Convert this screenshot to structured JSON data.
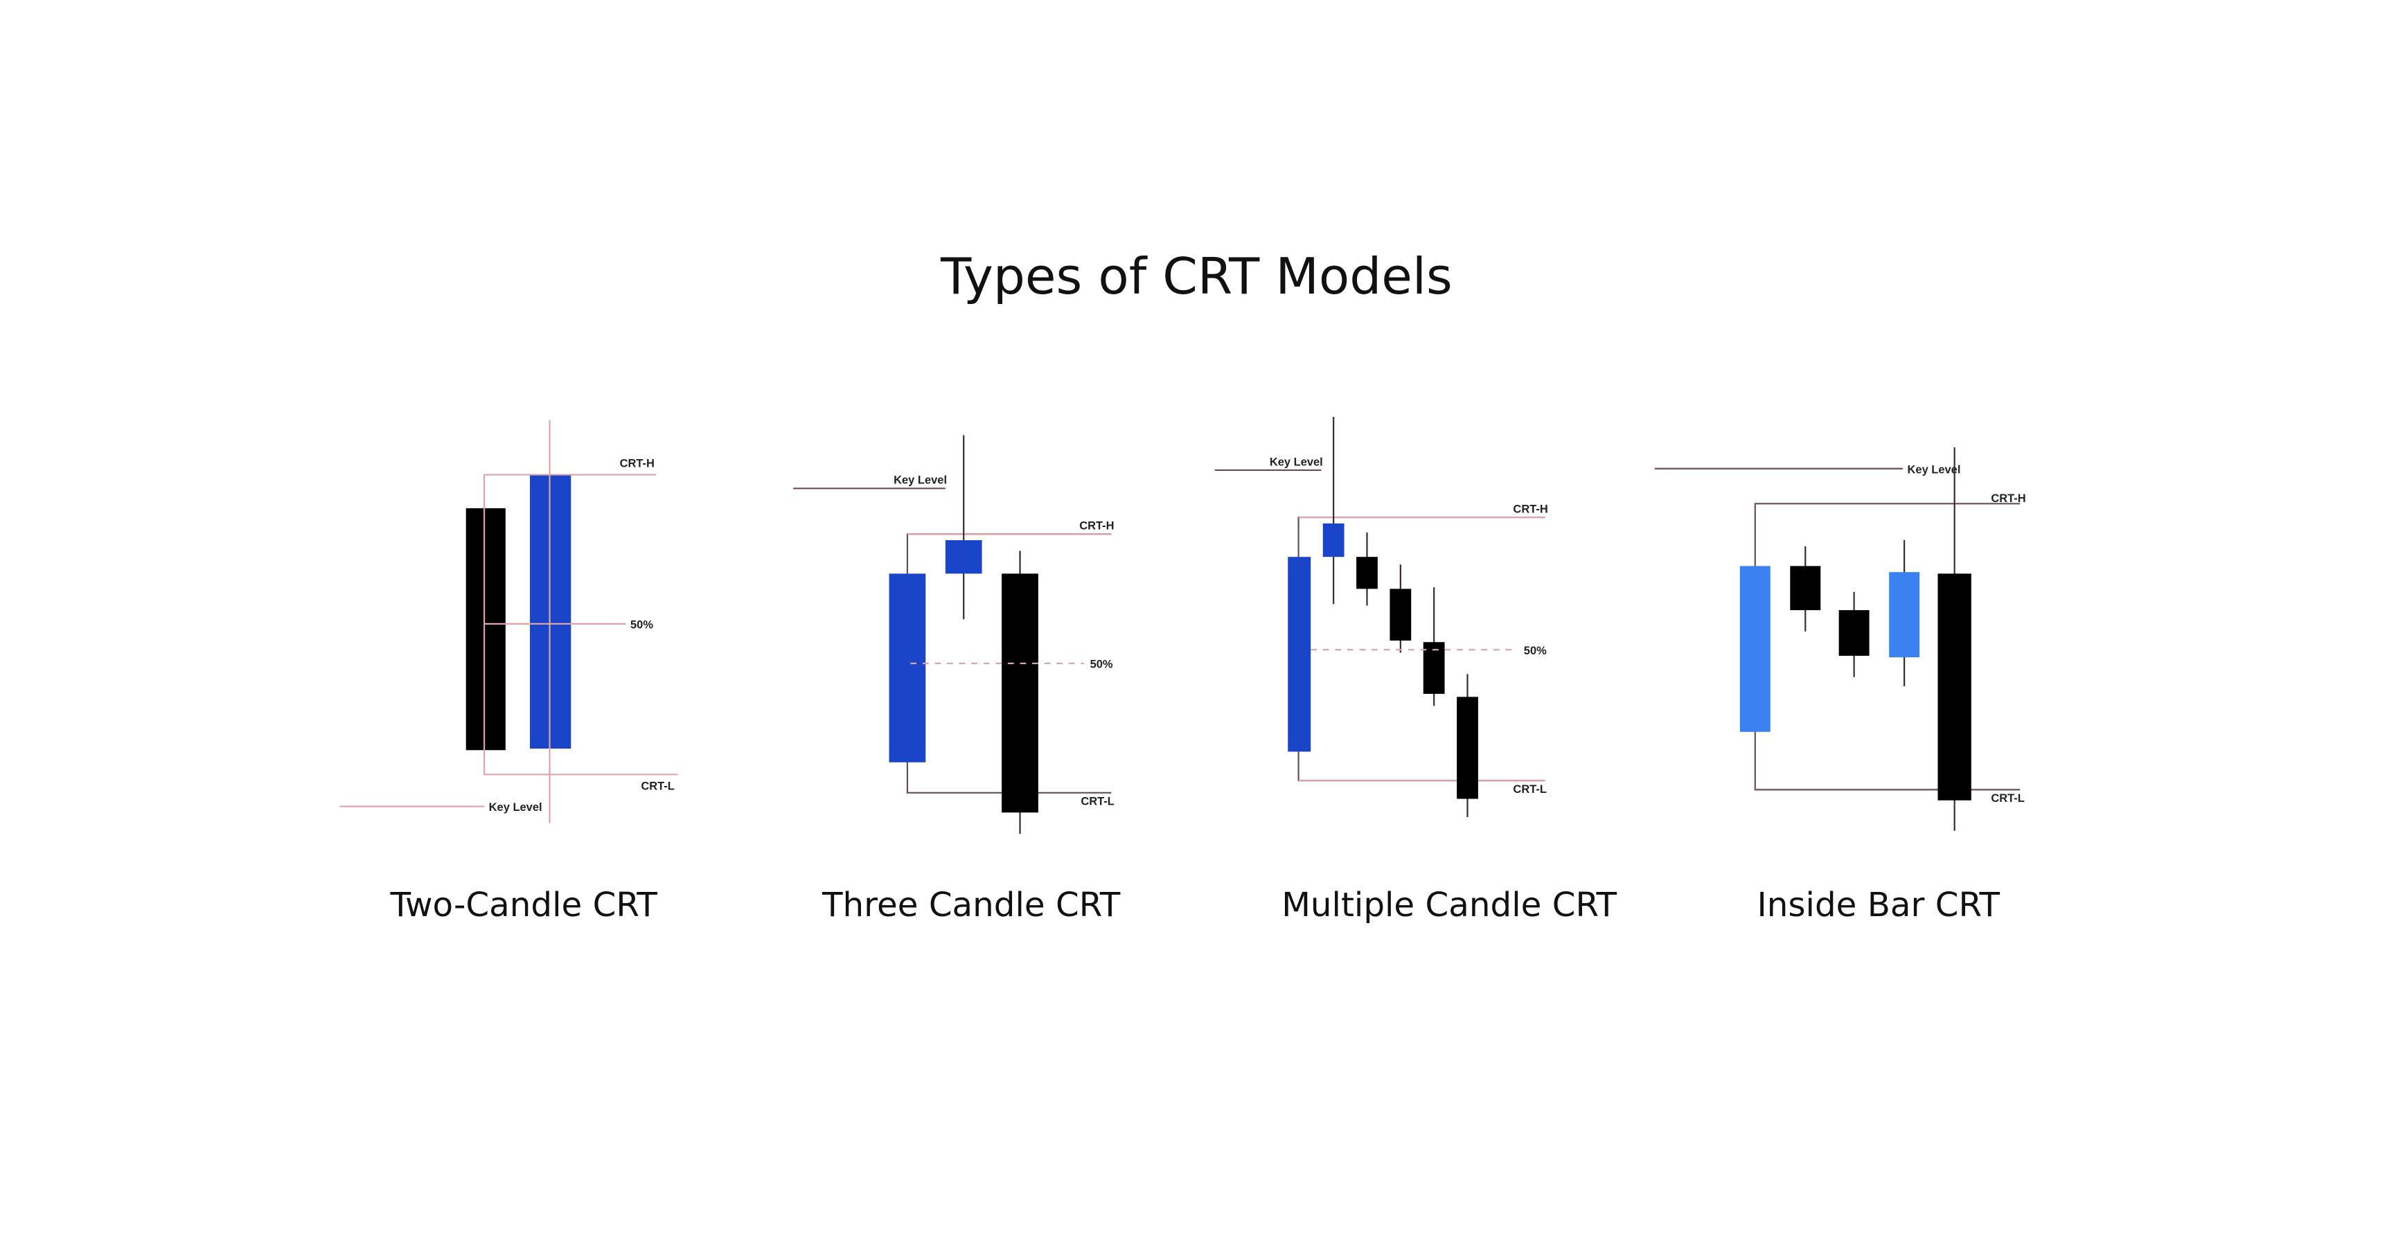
{
  "title": "Types of CRT Models",
  "colors": {
    "bullish_dark": "#1a45c9",
    "bullish_light": "#3b82f0",
    "bearish": "#000000",
    "level_line": "#d9a5ad"
  },
  "diagrams": [
    {
      "caption": "Two-Candle CRT",
      "crt_high": "CRT-H",
      "crt_low": "CRT-L",
      "mid": "50%",
      "key_level": "Key Level"
    },
    {
      "caption": "Three Candle CRT",
      "crt_high": "CRT-H",
      "crt_low": "CRT-L",
      "mid": "50%",
      "key_level": "Key Level"
    },
    {
      "caption": "Multiple Candle CRT",
      "crt_high": "CRT-H",
      "crt_low": "CRT-L",
      "mid": "50%",
      "key_level": "Key Level"
    },
    {
      "caption": "Inside Bar CRT",
      "crt_high": "CRT-H",
      "crt_low": "CRT-L",
      "key_level": "Key Level"
    }
  ]
}
